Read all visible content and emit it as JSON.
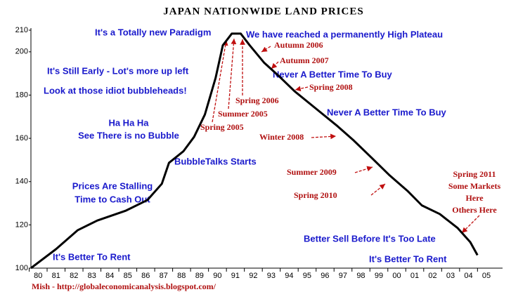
{
  "chart_data": {
    "type": "line",
    "title": "JAPAN NATIONWIDE LAND PRICES",
    "footer": "Mish - http://globaleconomicanalysis.blogspot.com/",
    "x": [
      1979.6,
      1981,
      1982.2,
      1983.3,
      1984.9,
      1986.1,
      1986.9,
      1987.3,
      1988.1,
      1988.7,
      1989.3,
      1989.9,
      1990.3,
      1990.8,
      1991.3,
      1991.8,
      1992.6,
      1993.4,
      1994.3,
      1995.5,
      1996.7,
      1997.6,
      1998.6,
      1999.6,
      2000.6,
      2001.4,
      2002.4,
      2003.4,
      2004.1,
      2004.5
    ],
    "series": [
      {
        "color": "#000000",
        "values": [
          100,
          108.8,
          117.5,
          122,
          126.6,
          131.5,
          139,
          148.7,
          154,
          160.7,
          171,
          188,
          203,
          208.4,
          208.4,
          203,
          195,
          189,
          181.8,
          173.7,
          165.6,
          159,
          151,
          142.9,
          135.7,
          129,
          125,
          118.5,
          112,
          106
        ]
      }
    ],
    "xlim": [
      1979.6,
      2005.9
    ],
    "ylim": [
      100,
      210
    ],
    "yticks": [
      100,
      120,
      140,
      160,
      180,
      200,
      210
    ],
    "xticks": [
      {
        "value": 1980,
        "label": "80"
      },
      {
        "value": 1981,
        "label": "81"
      },
      {
        "value": 1982,
        "label": "82"
      },
      {
        "value": 1983,
        "label": "83"
      },
      {
        "value": 1984,
        "label": "84"
      },
      {
        "value": 1985,
        "label": "85"
      },
      {
        "value": 1986,
        "label": "86"
      },
      {
        "value": 1987,
        "label": "87"
      },
      {
        "value": 1988,
        "label": "88"
      },
      {
        "value": 1989,
        "label": "89"
      },
      {
        "value": 1990,
        "label": "90"
      },
      {
        "value": 1991,
        "label": "91"
      },
      {
        "value": 1992,
        "label": "92"
      },
      {
        "value": 1993,
        "label": "93"
      },
      {
        "value": 1994,
        "label": "94"
      },
      {
        "value": 1995,
        "label": "95"
      },
      {
        "value": 1996,
        "label": "96"
      },
      {
        "value": 1997,
        "label": "97"
      },
      {
        "value": 1998,
        "label": "98"
      },
      {
        "value": 1999,
        "label": "99"
      },
      {
        "value": 2000,
        "label": "00"
      },
      {
        "value": 2001,
        "label": "01"
      },
      {
        "value": 2002,
        "label": "02"
      },
      {
        "value": 2003,
        "label": "03"
      },
      {
        "value": 2004,
        "label": "04"
      },
      {
        "value": 2005,
        "label": "05"
      }
    ],
    "annotations": [
      "It's a Totally new Paradigm",
      "We have reached a permanently High Plateau",
      "It's Still Early - Lot's more up left",
      "Look at those idiot bubbleheads!",
      [
        "Ha Ha Ha",
        "See There is no Bubble"
      ],
      "BubbleTalks Starts",
      [
        "Prices Are Stalling",
        "Time to Cash Out"
      ],
      "It's Better To Rent",
      "Never A Better Time To Buy",
      "Never A Better Time To Buy",
      "Better Sell Before It's Too Late",
      "It's Better To Rent",
      "Autumn 2006",
      "Autumn 2007",
      "Spring 2008",
      "Spring 2006",
      "Summer 2005",
      "Spring 2005",
      "Winter 2008",
      "Summer 2009",
      "Spring 2010",
      [
        "Spring 2011",
        "Some Markets",
        "Here",
        "Others Here"
      ]
    ]
  }
}
